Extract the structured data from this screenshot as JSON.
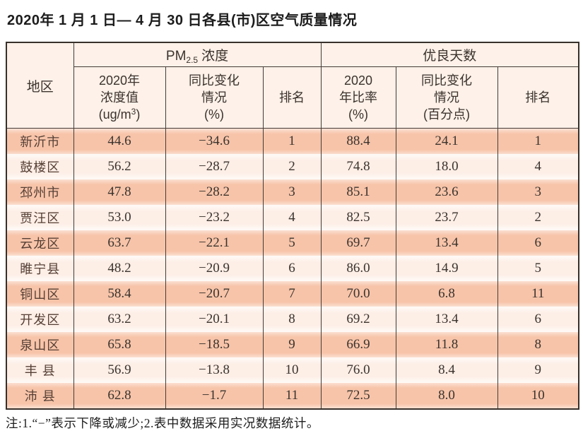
{
  "title": "2020年 1 月 1 日— 4 月 30 日各县(市)区空气质量情况",
  "table": {
    "corner_header": "地区",
    "pm25_group": {
      "prefix": "PM",
      "subscript": "2.5",
      "suffix": "浓度"
    },
    "good_days_group": "优良天数",
    "pm25_columns": {
      "value_header": {
        "line1": "2020年",
        "line2": "浓度值",
        "unit_prefix": "(ug/m",
        "unit_sup": "3",
        "unit_suffix": ")"
      },
      "change_header": {
        "line1": "同比变化",
        "line2": "情况",
        "line3": "(%)"
      },
      "rank_header": "排名"
    },
    "good_days_columns": {
      "ratio_header": {
        "line1": "2020",
        "line2": "年比率",
        "line3": "(%)"
      },
      "change_header": {
        "line1": "同比变化",
        "line2": "情况",
        "line3": "(百分点)"
      },
      "rank_header": "排名"
    },
    "rows": [
      {
        "region": "新沂市",
        "pm25": "44.6",
        "pm25_change": "−34.6",
        "pm25_rank": "1",
        "good": "88.4",
        "good_change": "24.1",
        "good_rank": "1"
      },
      {
        "region": "鼓楼区",
        "pm25": "56.2",
        "pm25_change": "−28.7",
        "pm25_rank": "2",
        "good": "74.8",
        "good_change": "18.0",
        "good_rank": "4"
      },
      {
        "region": "邳州市",
        "pm25": "47.8",
        "pm25_change": "−28.2",
        "pm25_rank": "3",
        "good": "85.1",
        "good_change": "23.6",
        "good_rank": "3"
      },
      {
        "region": "贾汪区",
        "pm25": "53.0",
        "pm25_change": "−23.2",
        "pm25_rank": "4",
        "good": "82.5",
        "good_change": "23.7",
        "good_rank": "2"
      },
      {
        "region": "云龙区",
        "pm25": "63.7",
        "pm25_change": "−22.1",
        "pm25_rank": "5",
        "good": "69.7",
        "good_change": "13.4",
        "good_rank": "6"
      },
      {
        "region": "睢宁县",
        "pm25": "48.2",
        "pm25_change": "−20.9",
        "pm25_rank": "6",
        "good": "86.0",
        "good_change": "14.9",
        "good_rank": "5"
      },
      {
        "region": "铜山区",
        "pm25": "58.4",
        "pm25_change": "−20.7",
        "pm25_rank": "7",
        "good": "70.0",
        "good_change": "6.8",
        "good_rank": "11"
      },
      {
        "region": "开发区",
        "pm25": "63.2",
        "pm25_change": "−20.1",
        "pm25_rank": "8",
        "good": "69.2",
        "good_change": "13.4",
        "good_rank": "6"
      },
      {
        "region": "泉山区",
        "pm25": "65.8",
        "pm25_change": "−18.5",
        "pm25_rank": "9",
        "good": "66.9",
        "good_change": "11.8",
        "good_rank": "8"
      },
      {
        "region": "丰 县",
        "pm25": "56.9",
        "pm25_change": "−13.8",
        "pm25_rank": "10",
        "good": "76.0",
        "good_change": "8.4",
        "good_rank": "9"
      },
      {
        "region": "沛 县",
        "pm25": "62.8",
        "pm25_change": "−1.7",
        "pm25_rank": "11",
        "good": "72.5",
        "good_change": "8.0",
        "good_rank": "10"
      }
    ]
  },
  "footnote": "注:1.“−”表示下降或减少;2.表中数据采用实况数据统计。",
  "colors": {
    "row_accent": "#f7c4a9",
    "row_light": "#fdeee6",
    "header_bg": "#fdf1e9",
    "border": "#453c37"
  }
}
